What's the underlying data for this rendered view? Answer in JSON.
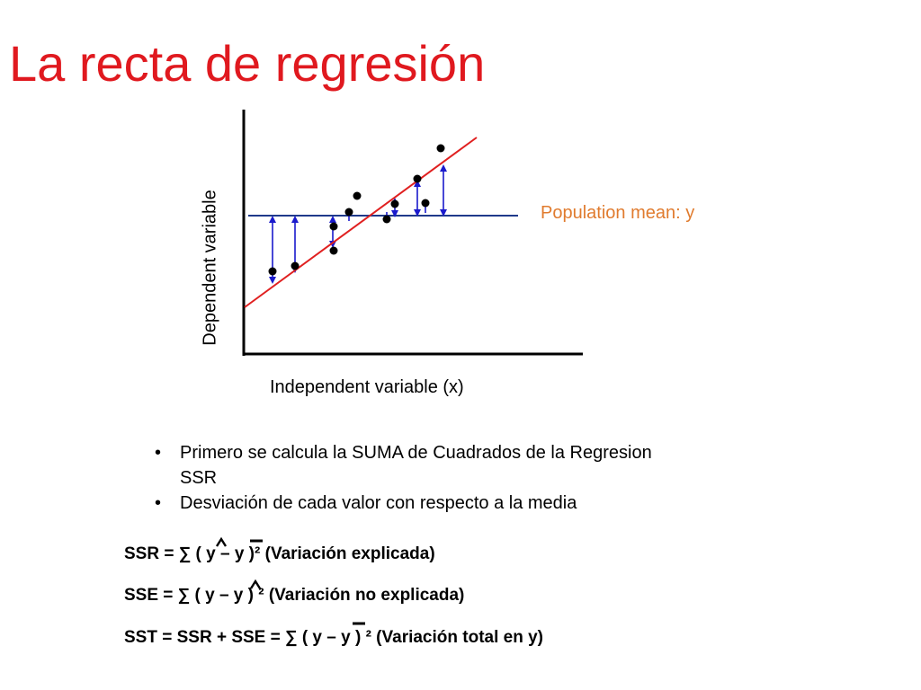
{
  "slide": {
    "title": "La recta de regresión"
  },
  "diagram": {
    "y_axis_label": "Dependent variable",
    "x_axis_label": "Independent variable (x)",
    "mean_line_label": "Population mean: y",
    "colors": {
      "regression_line": "#e02020",
      "mean_line": "#1f3a8a",
      "deviation_arrows": "#1a1acc",
      "points": "#000000",
      "mean_label": "#e07b2e",
      "title": "#e0191f"
    }
  },
  "bullets": [
    "Primero se calcula la SUMA de Cuadrados de la Regresion SSR",
    "Desviación de cada valor con respecto a la media"
  ],
  "formulas": {
    "ssr": "SSR =  ∑ ( y – y )²    (Variación explicada)",
    "sse": "SSE =  ∑ ( y – y ) ²     (Variación no explicada)",
    "sst": "SST = SSR + SSE = ∑ ( y – y ) ²  (Variación total en y)"
  }
}
